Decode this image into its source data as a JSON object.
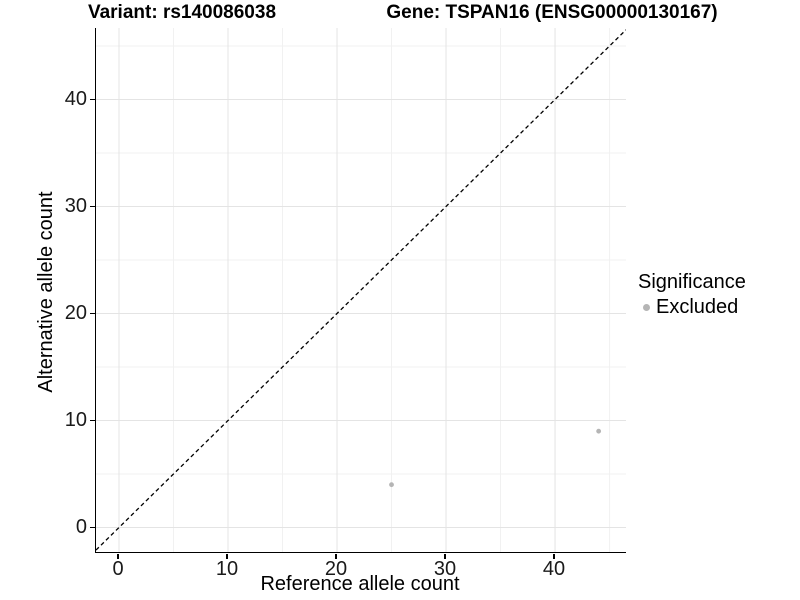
{
  "header": {
    "variant_title": "Variant: rs140086038",
    "gene_title": "Gene: TSPAN16 (ENSG00000130167)"
  },
  "axes": {
    "x": {
      "label": "Reference allele count",
      "ticks": [
        0,
        10,
        20,
        30,
        40
      ],
      "minor_ticks": [
        5,
        15,
        25,
        35,
        45
      ]
    },
    "y": {
      "label": "Alternative allele count",
      "ticks": [
        0,
        10,
        20,
        30,
        40
      ],
      "minor_ticks": [
        5,
        15,
        25,
        35,
        45
      ]
    }
  },
  "legend": {
    "title": "Significance",
    "items": [
      {
        "label": "Excluded",
        "color": "#b5b5b5"
      }
    ]
  },
  "colors": {
    "point": "#b5b5b5",
    "major_grid": "#e4e4e4",
    "minor_grid": "#f1f1f1",
    "axis": "#000000",
    "reference_line": "#000000"
  },
  "chart_data": {
    "type": "scatter",
    "title": "Variant: rs140086038 | Gene: TSPAN16 (ENSG00000130167)",
    "xlabel": "Reference allele count",
    "ylabel": "Alternative allele count",
    "xlim": [
      -2.11,
      46.51
    ],
    "ylim": [
      -2.29,
      46.68
    ],
    "grid": "major-and-minor",
    "legend_position": "right",
    "series": [
      {
        "name": "Excluded",
        "color": "#b5b5b5",
        "points": [
          {
            "x": 25,
            "y": 4
          },
          {
            "x": 44,
            "y": 9
          }
        ]
      }
    ],
    "reference_line": {
      "kind": "identity",
      "equation": "y = x",
      "style": "dashed",
      "color": "#000000"
    }
  }
}
